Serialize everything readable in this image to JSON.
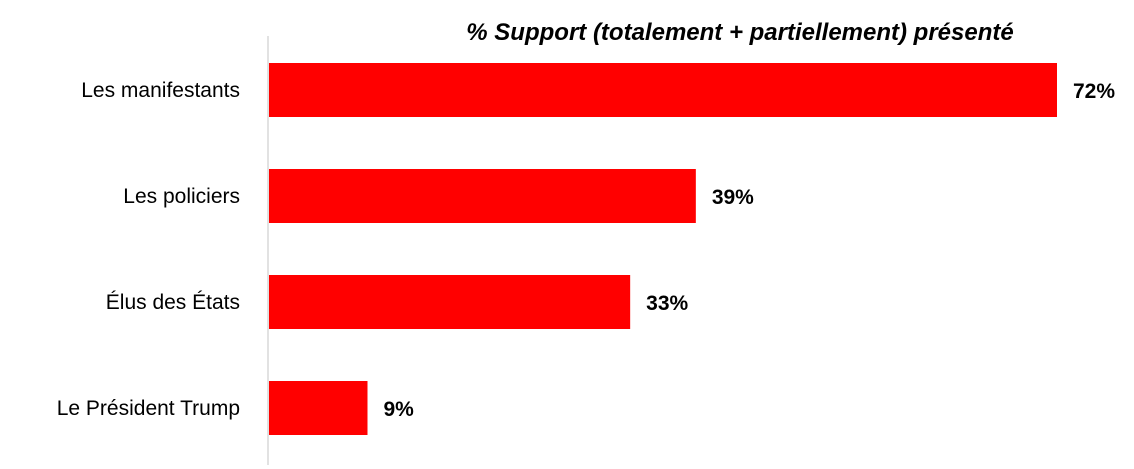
{
  "chart_data": {
    "type": "bar",
    "orientation": "horizontal",
    "title": "% Support (totalement + partiellement) présenté",
    "categories": [
      "Les manifestants",
      "Les policiers",
      "Élus des États",
      "Le Président Trump"
    ],
    "values": [
      72,
      39,
      33,
      9
    ],
    "data_labels": [
      "72%",
      "39%",
      "33%",
      "9%"
    ],
    "xlim": [
      0,
      72
    ],
    "grid": false,
    "legend": "none",
    "colors": {
      "bar": "#ff0000",
      "axis": "#d9d9d9",
      "text": "#000000"
    }
  }
}
